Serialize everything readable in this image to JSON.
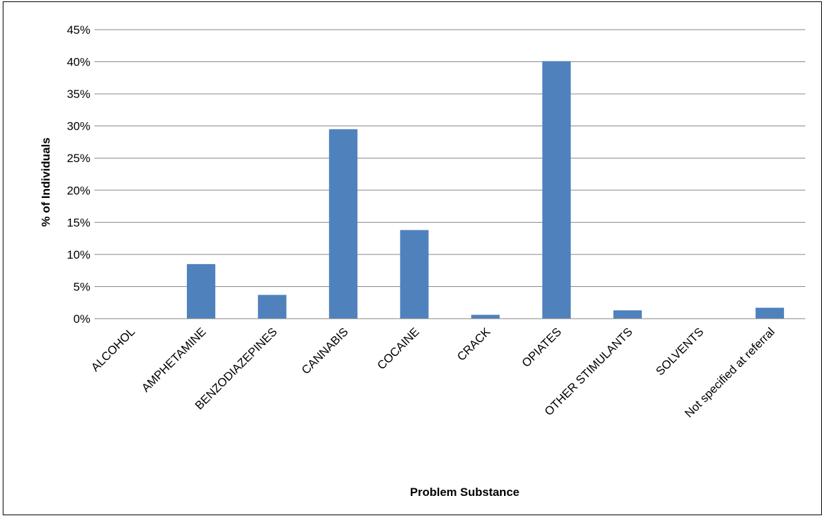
{
  "chart_data": {
    "type": "bar",
    "title": "",
    "xlabel": "Problem Substance",
    "ylabel": "% of Individuals",
    "categories": [
      "ALCOHOL",
      "AMPHETAMINE",
      "BENZODIAZEPINES",
      "CANNABIS",
      "COCAINE",
      "CRACK",
      "OPIATES",
      "OTHER STIMULANTS",
      "SOLVENTS",
      "Not specified at referral"
    ],
    "values": [
      0,
      8.5,
      3.7,
      29.5,
      13.8,
      0.6,
      40.1,
      1.3,
      0,
      1.7
    ],
    "ylim": [
      0,
      45
    ],
    "yticks": [
      "0%",
      "5%",
      "10%",
      "15%",
      "20%",
      "25%",
      "30%",
      "35%",
      "40%",
      "45%"
    ],
    "grid": true,
    "legend": "none",
    "bar_color": "#4f81bd"
  }
}
